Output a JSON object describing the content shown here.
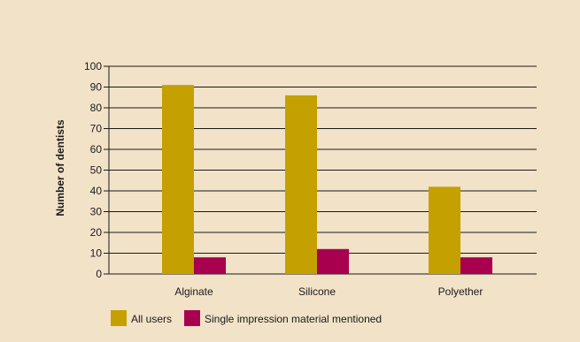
{
  "chart_data": {
    "type": "bar",
    "title": "",
    "xlabel": "",
    "ylabel": "Number of dentists",
    "ylim": [
      0,
      100
    ],
    "yticks": [
      0,
      10,
      20,
      30,
      40,
      50,
      60,
      70,
      80,
      90,
      100
    ],
    "grid": true,
    "legend_position": "bottom-left",
    "categories": [
      "Alginate",
      "Silicone",
      "Polyether"
    ],
    "series": [
      {
        "name": "All users",
        "color": "#c4a000",
        "values": [
          91,
          86,
          42
        ]
      },
      {
        "name": "Single impression material mentioned",
        "color": "#a8004f",
        "values": [
          8,
          12,
          8
        ]
      }
    ]
  },
  "colors": {
    "background": "#f2e2c8",
    "gridline": "#1a1a1a",
    "text": "#1a1a1a"
  }
}
